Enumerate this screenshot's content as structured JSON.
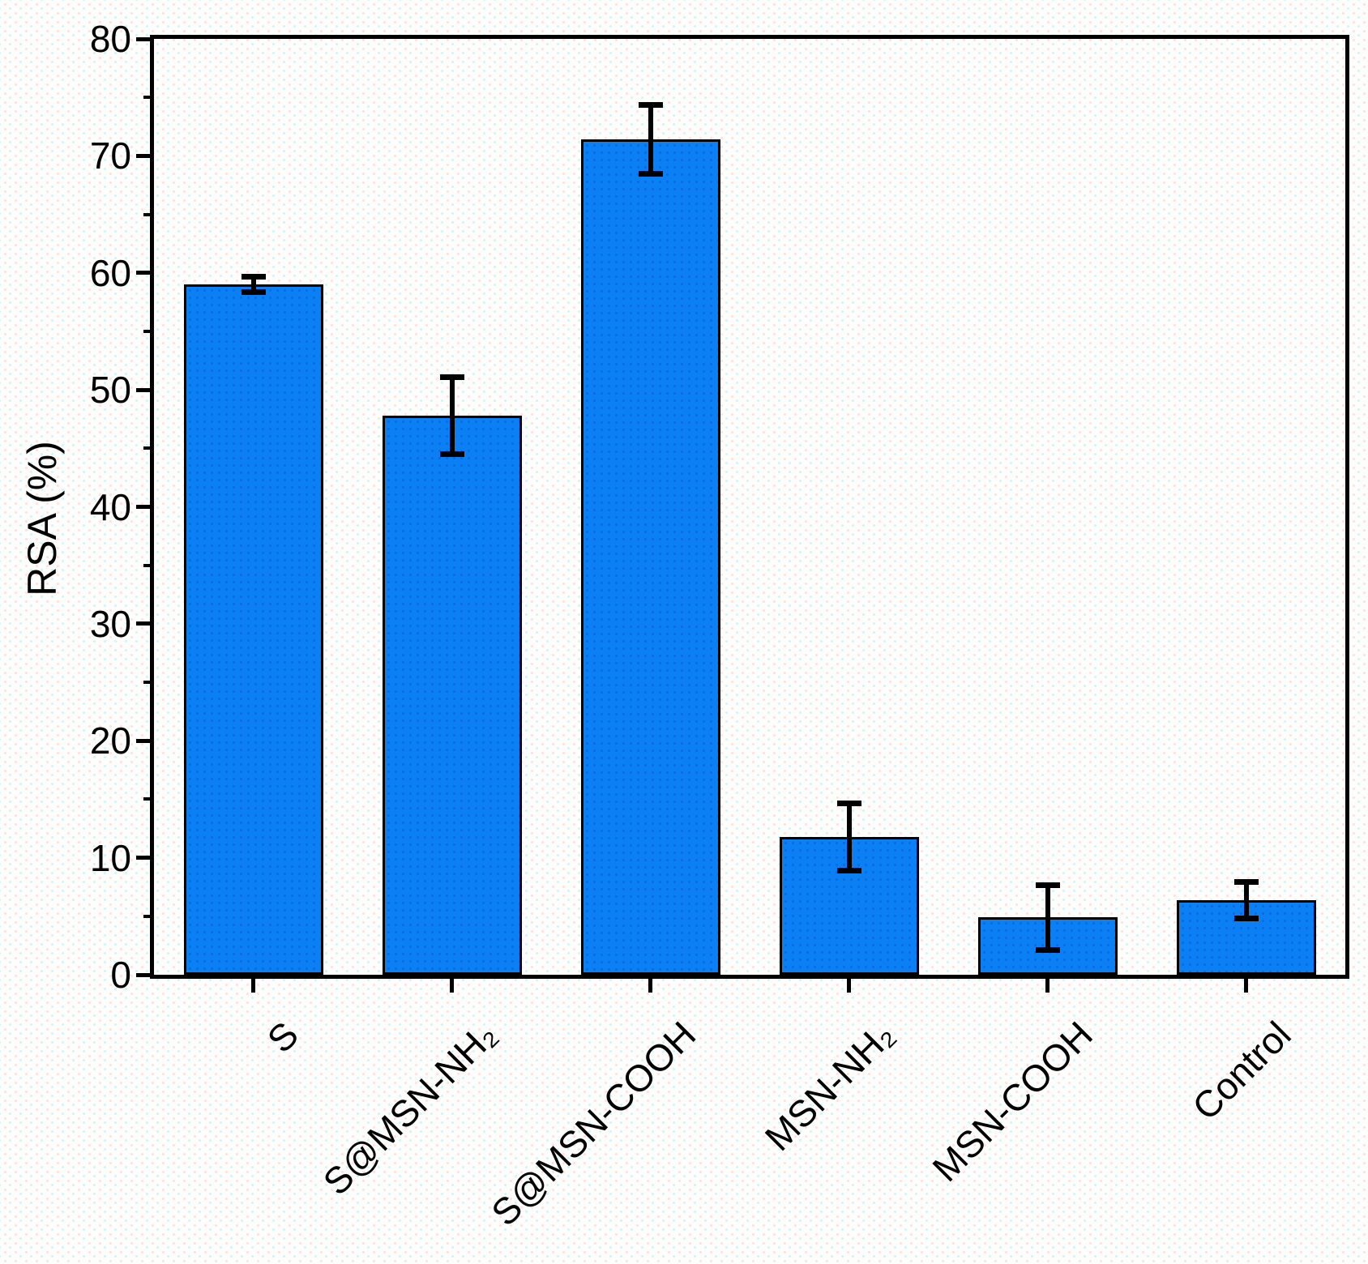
{
  "chart_data": {
    "type": "bar",
    "title": "",
    "xlabel": "",
    "ylabel": "RSA (%)",
    "ylim": [
      0,
      80
    ],
    "y_major_step": 10,
    "y_minor_step": 5,
    "grid": "off",
    "legend": "none",
    "categories": [
      "S",
      "S@MSN-NH₂",
      "S@MSN-COOH",
      "MSN-NH₂",
      "MSN-COOH",
      "Control"
    ],
    "values": [
      59.0,
      47.8,
      71.4,
      11.8,
      4.9,
      6.4
    ],
    "errors": [
      0.7,
      3.3,
      3.0,
      2.9,
      2.8,
      1.6
    ],
    "bar_color": "#0b80f4",
    "bar_border_color": "#000000",
    "error_bar_color": "#000000",
    "axis_color": "#000000"
  }
}
